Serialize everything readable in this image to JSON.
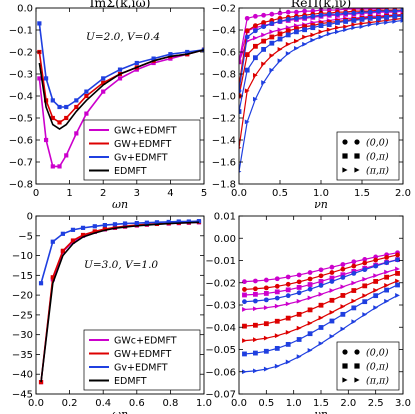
{
  "colors": {
    "gwc": "#cc00cc",
    "gw": "#dd0000",
    "gv": "#1f3fe0",
    "ed": "#000000"
  },
  "chart_data": [
    {
      "type": "line",
      "title": "ImΣ(k,iω)",
      "annotation": "U=2.0, V=0.4",
      "xlabel": "ωn",
      "xlim": [
        0,
        5
      ],
      "ylim": [
        -0.8,
        0
      ],
      "xticks": [
        "0",
        "1",
        "2",
        "3",
        "4",
        "5"
      ],
      "yticks": [
        "0.0",
        "−0.1",
        "−0.2",
        "−0.3",
        "−0.4",
        "−0.5",
        "−0.6",
        "−0.7",
        "−0.8"
      ],
      "legend": [
        "GWc+EDMFT",
        "GW+EDMFT",
        "Gv+EDMFT",
        "EDMFT"
      ],
      "legend_position": "lower-right",
      "series": [
        {
          "name": "GWc+EDMFT",
          "color": "magenta",
          "x": [
            0.1,
            0.3,
            0.5,
            0.7,
            0.9,
            1.2,
            1.5,
            2,
            2.5,
            3,
            3.5,
            4,
            4.5,
            5
          ],
          "y": [
            -0.32,
            -0.6,
            -0.72,
            -0.72,
            -0.67,
            -0.57,
            -0.48,
            -0.38,
            -0.32,
            -0.28,
            -0.25,
            -0.23,
            -0.21,
            -0.19
          ]
        },
        {
          "name": "GW+EDMFT",
          "color": "red",
          "x": [
            0.1,
            0.3,
            0.5,
            0.7,
            0.9,
            1.2,
            1.5,
            2,
            2.5,
            3,
            3.5,
            4,
            4.5,
            5
          ],
          "y": [
            -0.2,
            -0.42,
            -0.5,
            -0.52,
            -0.5,
            -0.45,
            -0.4,
            -0.34,
            -0.3,
            -0.27,
            -0.24,
            -0.22,
            -0.21,
            -0.19
          ]
        },
        {
          "name": "Gv+EDMFT",
          "color": "blue",
          "x": [
            0.1,
            0.3,
            0.5,
            0.7,
            0.9,
            1.2,
            1.5,
            2,
            2.5,
            3,
            3.5,
            4,
            4.5,
            5
          ],
          "y": [
            -0.07,
            -0.32,
            -0.42,
            -0.45,
            -0.45,
            -0.42,
            -0.38,
            -0.32,
            -0.28,
            -0.25,
            -0.23,
            -0.21,
            -0.2,
            -0.19
          ]
        },
        {
          "name": "EDMFT",
          "color": "black",
          "x": [
            0.1,
            0.3,
            0.5,
            0.7,
            0.9,
            1.2,
            1.5,
            2,
            2.5,
            3,
            3.5,
            4,
            4.5,
            5
          ],
          "y": [
            -0.25,
            -0.45,
            -0.53,
            -0.55,
            -0.53,
            -0.47,
            -0.42,
            -0.35,
            -0.3,
            -0.27,
            -0.24,
            -0.22,
            -0.21,
            -0.19
          ]
        }
      ]
    },
    {
      "type": "line",
      "title": "ReΠ(k,iν)",
      "xlabel": "νn",
      "xlim": [
        0,
        2
      ],
      "ylim": [
        -1.8,
        -0.1
      ],
      "xticks": [
        "0.0",
        "0.5",
        "1.0",
        "1.5",
        "2.0"
      ],
      "yticks": [
        "−0.2",
        "−0.4",
        "−0.6",
        "−0.8",
        "−1.0",
        "−1.2",
        "−1.4",
        "−1.6",
        "−1.8"
      ],
      "legend": [
        "(0,0)",
        "(0,π)",
        "(π,π)"
      ],
      "legend_position": "lower-right",
      "note": "magenta = GWc+EDMFT, red = GW+EDMFT, blue = Gv+EDMFT; circle/square/triangle markers = momentum",
      "x": [
        0,
        0.1,
        0.2,
        0.3,
        0.4,
        0.5,
        0.6,
        0.7,
        0.8,
        0.9,
        1.0,
        1.1,
        1.2,
        1.3,
        1.4,
        1.5,
        1.6,
        1.7,
        1.8,
        1.9,
        2.0
      ],
      "series": [
        {
          "group": "magenta",
          "marker": "circle",
          "y": [
            -0.62,
            -0.2,
            -0.18,
            -0.17,
            -0.16,
            -0.15,
            -0.14,
            -0.14,
            -0.13,
            -0.13,
            -0.12,
            -0.12,
            -0.12,
            -0.11,
            -0.11,
            -0.11,
            -0.11,
            -0.11,
            -0.1,
            -0.1,
            -0.1
          ]
        },
        {
          "group": "magenta",
          "marker": "square",
          "y": [
            -0.62,
            -0.32,
            -0.29,
            -0.27,
            -0.25,
            -0.23,
            -0.22,
            -0.21,
            -0.2,
            -0.19,
            -0.18,
            -0.17,
            -0.17,
            -0.16,
            -0.16,
            -0.15,
            -0.15,
            -0.14,
            -0.14,
            -0.14,
            -0.13
          ]
        },
        {
          "group": "magenta",
          "marker": "triangle",
          "y": [
            -0.62,
            -0.42,
            -0.39,
            -0.36,
            -0.33,
            -0.31,
            -0.29,
            -0.27,
            -0.26,
            -0.24,
            -0.23,
            -0.22,
            -0.21,
            -0.2,
            -0.2,
            -0.19,
            -0.18,
            -0.18,
            -0.17,
            -0.17,
            -0.16
          ]
        },
        {
          "group": "red",
          "marker": "circle",
          "y": [
            -0.85,
            -0.32,
            -0.27,
            -0.24,
            -0.22,
            -0.2,
            -0.19,
            -0.18,
            -0.17,
            -0.16,
            -0.15,
            -0.15,
            -0.14,
            -0.14,
            -0.13,
            -0.13,
            -0.13,
            -0.12,
            -0.12,
            -0.12,
            -0.12
          ]
        },
        {
          "group": "red",
          "marker": "square",
          "y": [
            -0.95,
            -0.55,
            -0.47,
            -0.42,
            -0.38,
            -0.35,
            -0.32,
            -0.3,
            -0.28,
            -0.27,
            -0.25,
            -0.24,
            -0.23,
            -0.22,
            -0.21,
            -0.2,
            -0.19,
            -0.19,
            -0.18,
            -0.17,
            -0.17
          ]
        },
        {
          "group": "red",
          "marker": "triangle",
          "y": [
            -1.45,
            -0.9,
            -0.75,
            -0.64,
            -0.56,
            -0.5,
            -0.45,
            -0.42,
            -0.38,
            -0.36,
            -0.33,
            -0.31,
            -0.29,
            -0.28,
            -0.26,
            -0.25,
            -0.24,
            -0.23,
            -0.22,
            -0.21,
            -0.2
          ]
        },
        {
          "group": "blue",
          "marker": "circle",
          "y": [
            -0.9,
            -0.38,
            -0.32,
            -0.28,
            -0.25,
            -0.23,
            -0.21,
            -0.2,
            -0.19,
            -0.18,
            -0.17,
            -0.16,
            -0.16,
            -0.15,
            -0.15,
            -0.14,
            -0.14,
            -0.13,
            -0.13,
            -0.13,
            -0.12
          ]
        },
        {
          "group": "blue",
          "marker": "square",
          "y": [
            -1.1,
            -0.7,
            -0.58,
            -0.5,
            -0.44,
            -0.4,
            -0.36,
            -0.33,
            -0.31,
            -0.29,
            -0.27,
            -0.26,
            -0.24,
            -0.23,
            -0.22,
            -0.21,
            -0.2,
            -0.2,
            -0.19,
            -0.18,
            -0.18
          ]
        },
        {
          "group": "blue",
          "marker": "triangle",
          "y": [
            -1.68,
            -1.2,
            -0.98,
            -0.82,
            -0.7,
            -0.61,
            -0.54,
            -0.49,
            -0.45,
            -0.41,
            -0.38,
            -0.35,
            -0.33,
            -0.31,
            -0.29,
            -0.28,
            -0.26,
            -0.25,
            -0.24,
            -0.23,
            -0.22
          ]
        }
      ]
    },
    {
      "type": "line",
      "annotation": "U=3.0, V=1.0",
      "xlabel": "ωn",
      "xlim": [
        0,
        1
      ],
      "ylim": [
        -45,
        0
      ],
      "xticks": [
        "0.0",
        "0.2",
        "0.4",
        "0.6",
        "0.8",
        "1.0"
      ],
      "yticks": [
        "0",
        "−5",
        "−10",
        "−15",
        "−20",
        "−25",
        "−30",
        "−35",
        "−40",
        "−45"
      ],
      "legend": [
        "GWc+EDMFT",
        "GW+EDMFT",
        "Gv+EDMFT",
        "EDMFT"
      ],
      "legend_position": "lower-right",
      "series": [
        {
          "name": "GWc+EDMFT",
          "color": "magenta",
          "x": [
            0.03,
            0.1,
            0.16,
            0.22,
            0.28,
            0.35,
            0.41,
            0.47,
            0.53,
            0.6,
            0.66,
            0.72,
            0.79,
            0.85,
            0.91,
            0.97
          ],
          "y": [
            -42,
            -16,
            -9,
            -6.5,
            -5,
            -4,
            -3.4,
            -3,
            -2.7,
            -2.4,
            -2.2,
            -2,
            -1.9,
            -1.8,
            -1.7,
            -1.6
          ]
        },
        {
          "name": "GW+EDMFT",
          "color": "red",
          "x": [
            0.03,
            0.1,
            0.16,
            0.22,
            0.28,
            0.35,
            0.41,
            0.47,
            0.53,
            0.6,
            0.66,
            0.72,
            0.79,
            0.85,
            0.91,
            0.97
          ],
          "y": [
            -42,
            -15.5,
            -8.8,
            -6.2,
            -4.8,
            -3.9,
            -3.3,
            -2.9,
            -2.6,
            -2.3,
            -2.1,
            -2,
            -1.8,
            -1.7,
            -1.6,
            -1.5
          ]
        },
        {
          "name": "Gv+EDMFT",
          "color": "blue",
          "x": [
            0.03,
            0.1,
            0.16,
            0.22,
            0.28,
            0.35,
            0.41,
            0.47,
            0.53,
            0.6,
            0.66,
            0.72,
            0.79,
            0.85,
            0.91,
            0.97
          ],
          "y": [
            -17,
            -6.5,
            -4.5,
            -3.5,
            -3,
            -2.6,
            -2.3,
            -2.1,
            -1.9,
            -1.8,
            -1.7,
            -1.6,
            -1.5,
            -1.4,
            -1.4,
            -1.3
          ]
        },
        {
          "name": "EDMFT",
          "color": "black",
          "x": [
            0.03,
            0.1,
            0.16,
            0.22,
            0.28,
            0.35,
            0.41,
            0.47,
            0.53,
            0.6,
            0.66,
            0.72,
            0.79,
            0.85,
            0.91,
            0.97
          ],
          "y": [
            -42,
            -17,
            -10,
            -7,
            -5.3,
            -4.3,
            -3.6,
            -3.1,
            -2.8,
            -2.5,
            -2.3,
            -2.1,
            -1.9,
            -1.8,
            -1.7,
            -1.6
          ]
        }
      ]
    },
    {
      "type": "line",
      "xlabel": "νn",
      "xlim": [
        0,
        3
      ],
      "ylim": [
        -0.07,
        0.01
      ],
      "xticks": [
        "0.0",
        "0.5",
        "1.0",
        "1.5",
        "2.0",
        "2.5",
        "3.0"
      ],
      "yticks": [
        "0.01",
        "0.00",
        "−0.01",
        "−0.02",
        "−0.03",
        "−0.04",
        "−0.05",
        "−0.06",
        "−0.07"
      ],
      "legend": [
        "(0,0)",
        "(0,π)",
        "(π,π)"
      ],
      "legend_position": "lower-right",
      "x": [
        0.1,
        0.3,
        0.5,
        0.7,
        0.9,
        1.1,
        1.3,
        1.5,
        1.7,
        1.9,
        2.1,
        2.3,
        2.5,
        2.7,
        2.9
      ],
      "series": [
        {
          "group": "magenta",
          "marker": "circle",
          "y": [
            -0.0195,
            -0.0192,
            -0.0188,
            -0.0182,
            -0.0174,
            -0.0165,
            -0.0154,
            -0.0142,
            -0.013,
            -0.0118,
            -0.0106,
            -0.0095,
            -0.0084,
            -0.0074,
            -0.0065
          ]
        },
        {
          "group": "magenta",
          "marker": "square",
          "y": [
            -0.0255,
            -0.0252,
            -0.0248,
            -0.0241,
            -0.0232,
            -0.0221,
            -0.0208,
            -0.0194,
            -0.0179,
            -0.0164,
            -0.0149,
            -0.0135,
            -0.0121,
            -0.0108,
            -0.0096
          ]
        },
        {
          "group": "magenta",
          "marker": "triangle",
          "y": [
            -0.032,
            -0.0317,
            -0.0312,
            -0.0305,
            -0.0295,
            -0.0283,
            -0.0268,
            -0.0252,
            -0.0235,
            -0.0218,
            -0.0201,
            -0.0184,
            -0.0168,
            -0.0152,
            -0.0138
          ]
        },
        {
          "group": "red",
          "marker": "circle",
          "y": [
            -0.023,
            -0.0227,
            -0.0223,
            -0.0216,
            -0.0207,
            -0.0196,
            -0.0183,
            -0.0169,
            -0.0154,
            -0.0139,
            -0.0125,
            -0.0111,
            -0.0098,
            -0.0086,
            -0.0075
          ]
        },
        {
          "group": "red",
          "marker": "square",
          "y": [
            -0.0395,
            -0.0391,
            -0.0384,
            -0.0373,
            -0.0359,
            -0.0342,
            -0.0322,
            -0.0301,
            -0.0279,
            -0.0257,
            -0.0235,
            -0.0214,
            -0.0194,
            -0.0175,
            -0.0158
          ]
        },
        {
          "group": "red",
          "marker": "triangle",
          "y": [
            -0.046,
            -0.0456,
            -0.0449,
            -0.0438,
            -0.0423,
            -0.0404,
            -0.0382,
            -0.0358,
            -0.0333,
            -0.0307,
            -0.0282,
            -0.0258,
            -0.0234,
            -0.0212,
            -0.0192
          ]
        },
        {
          "group": "blue",
          "marker": "circle",
          "y": [
            -0.0285,
            -0.0282,
            -0.0277,
            -0.0269,
            -0.0258,
            -0.0245,
            -0.0229,
            -0.0212,
            -0.0194,
            -0.0176,
            -0.0158,
            -0.0141,
            -0.0125,
            -0.011,
            -0.0097
          ]
        },
        {
          "group": "blue",
          "marker": "square",
          "y": [
            -0.052,
            -0.0516,
            -0.0508,
            -0.0495,
            -0.0477,
            -0.0455,
            -0.0429,
            -0.0401,
            -0.0372,
            -0.0342,
            -0.0313,
            -0.0285,
            -0.0258,
            -0.0233,
            -0.021
          ]
        },
        {
          "group": "blue",
          "marker": "triangle",
          "y": [
            -0.06,
            -0.0596,
            -0.0588,
            -0.0575,
            -0.0556,
            -0.0532,
            -0.0504,
            -0.0473,
            -0.0441,
            -0.0408,
            -0.0375,
            -0.0343,
            -0.0312,
            -0.0283,
            -0.0257
          ]
        }
      ]
    }
  ]
}
